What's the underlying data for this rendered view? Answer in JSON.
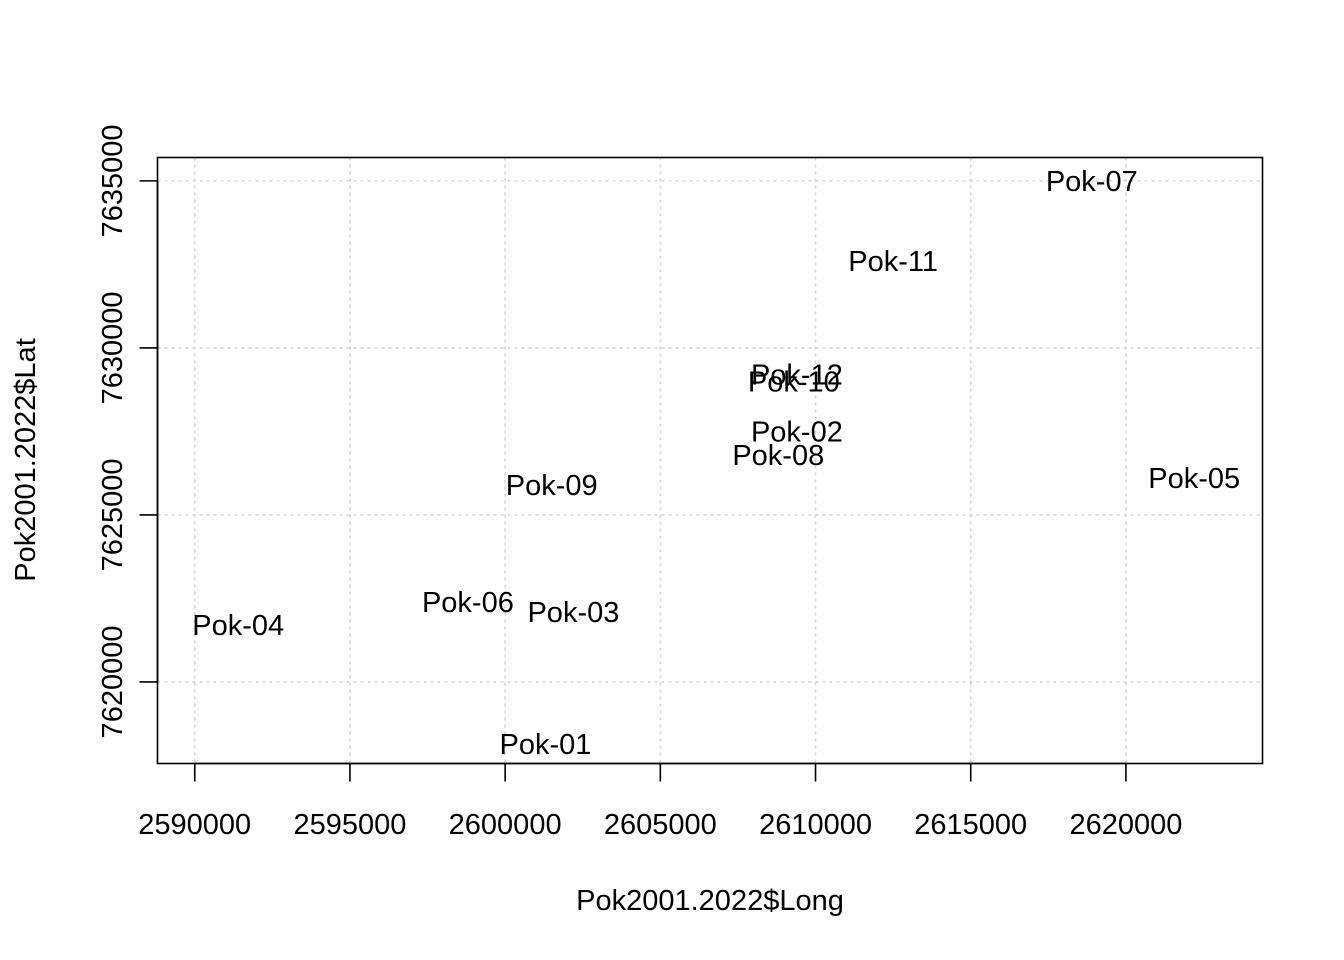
{
  "chart_data": {
    "type": "scatter",
    "title": "",
    "xlabel": "Pok2001.2022$Long",
    "ylabel": "Pok2001.2022$Lat",
    "xlim": [
      2588800,
      2624400
    ],
    "ylim": [
      7617560,
      7635700
    ],
    "xticks": [
      2590000,
      2595000,
      2600000,
      2605000,
      2610000,
      2615000,
      2620000
    ],
    "yticks": [
      7620000,
      7625000,
      7630000,
      7635000
    ],
    "xtick_labels": [
      "2590000",
      "2595000",
      "2600000",
      "2605000",
      "2610000",
      "2615000",
      "2620000"
    ],
    "ytick_labels": [
      "7620000",
      "7625000",
      "7630000",
      "7635000"
    ],
    "grid": true,
    "points": [
      {
        "label": "Pok-07",
        "x": 2618900,
        "y": 7635000
      },
      {
        "label": "Pok-11",
        "x": 2612500,
        "y": 7632600
      },
      {
        "label": "Pok-12",
        "x": 2609400,
        "y": 7629200
      },
      {
        "label": "Pok-10",
        "x": 2609300,
        "y": 7629000
      },
      {
        "label": "Pok-02",
        "x": 2609400,
        "y": 7627500
      },
      {
        "label": "Pok-08",
        "x": 2608800,
        "y": 7626800
      },
      {
        "label": "Pok-05",
        "x": 2622200,
        "y": 7626100
      },
      {
        "label": "Pok-09",
        "x": 2601500,
        "y": 7625900
      },
      {
        "label": "Pok-06",
        "x": 2598800,
        "y": 7622400
      },
      {
        "label": "Pok-03",
        "x": 2602200,
        "y": 7622100
      },
      {
        "label": "Pok-04",
        "x": 2591400,
        "y": 7621700
      },
      {
        "label": "Pok-01",
        "x": 2601300,
        "y": 7618150
      }
    ]
  }
}
